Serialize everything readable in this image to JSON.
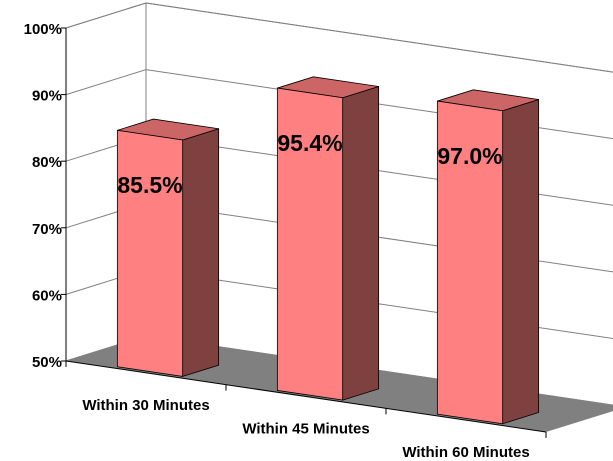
{
  "chart_data": {
    "type": "bar",
    "title": "",
    "xlabel": "",
    "ylabel": "",
    "categories": [
      "Within 30 Minutes",
      "Within 45 Minutes",
      "Within 60 Minutes"
    ],
    "values": [
      85.5,
      95.4,
      97.0
    ],
    "data_labels": [
      "85.5%",
      "95.4%",
      "97.0%"
    ],
    "ylim": [
      50,
      100
    ],
    "yticks": [
      "50%",
      "60%",
      "70%",
      "80%",
      "90%",
      "100%"
    ],
    "grid": true,
    "legend": "none",
    "style": "3d",
    "colors": {
      "bar_front": "#FF8080",
      "bar_top": "#CC6666",
      "bar_side": "#7F4040",
      "floor": "#808080",
      "grid": "#808080"
    }
  }
}
